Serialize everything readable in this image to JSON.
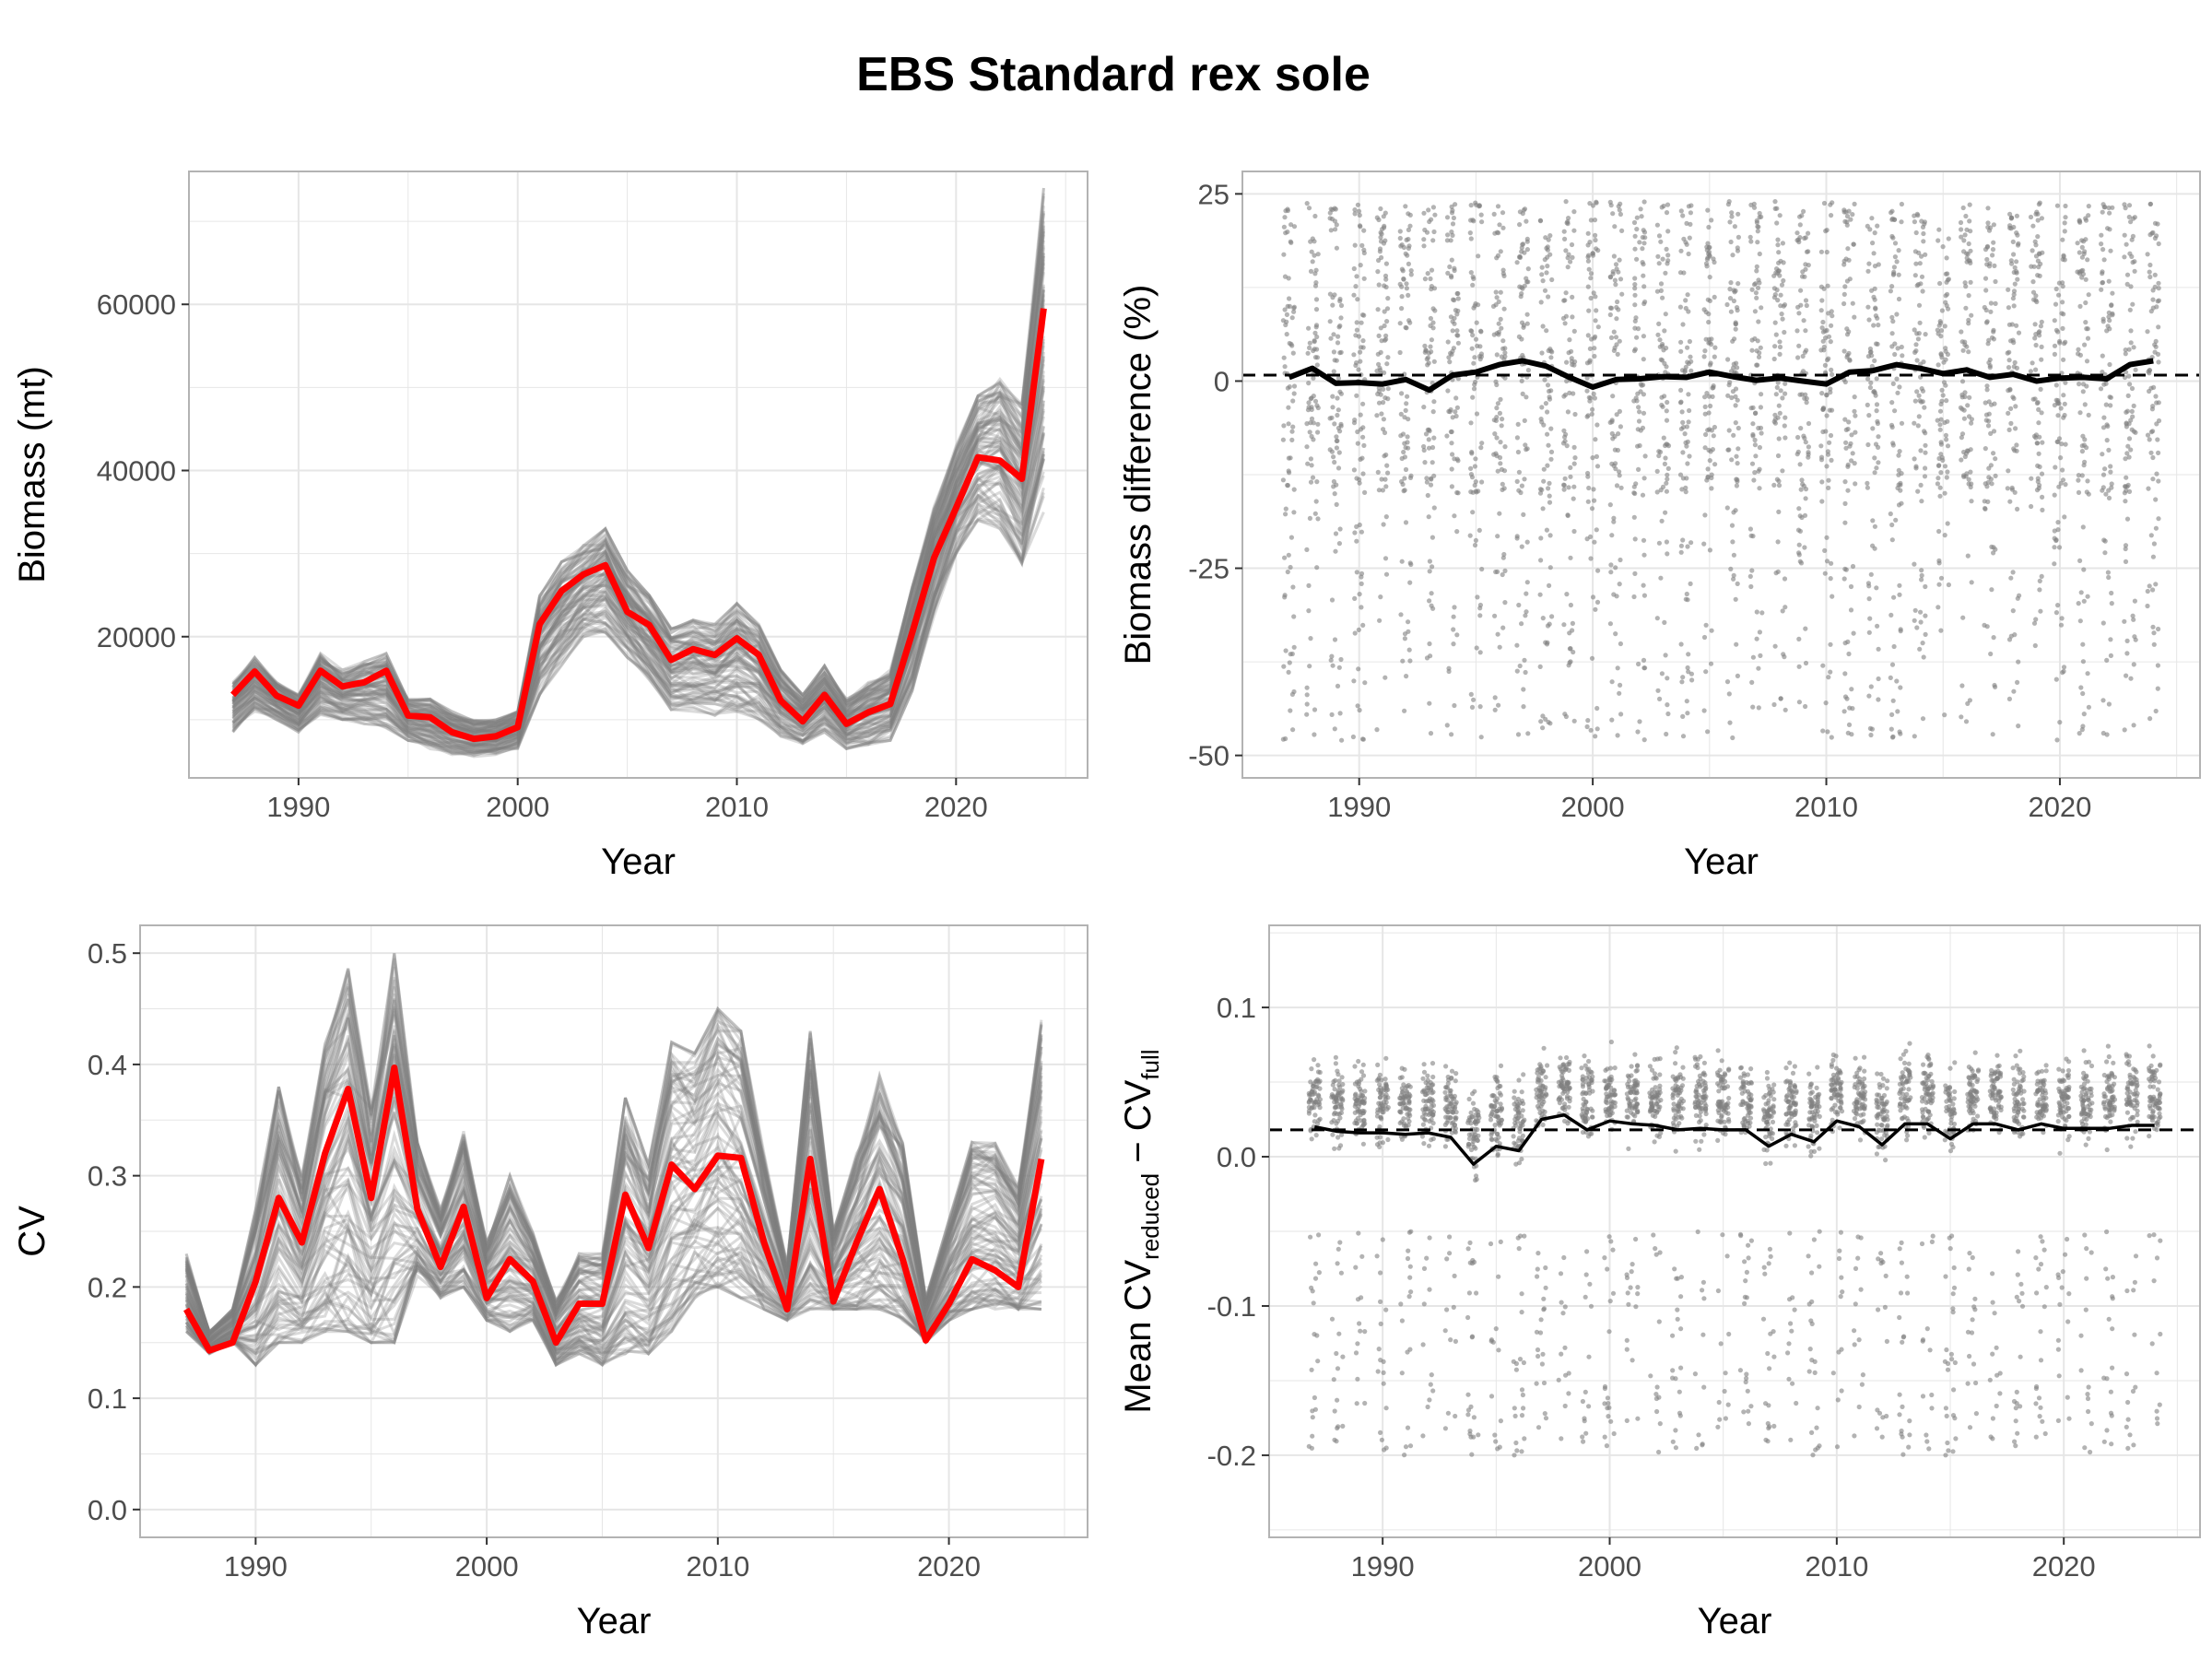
{
  "figure": {
    "title": "EBS Standard rex sole"
  },
  "colors": {
    "highlight": "#ff0000",
    "ensemble": "#7f7f7f",
    "mean_line": "#000000",
    "points": "#808080",
    "grid": "#e6e6e6",
    "panel_border": "#b3b3b3"
  },
  "chart_data": [
    {
      "id": "biomass",
      "type": "line",
      "xlabel": "Year",
      "ylabel": "Biomass (mt)",
      "xlim": [
        1985,
        2026
      ],
      "ylim": [
        3000,
        76000
      ],
      "x_ticks": [
        1990,
        2000,
        2010,
        2020
      ],
      "y_ticks": [
        20000,
        40000,
        60000
      ],
      "grid": true,
      "x": [
        1987,
        1988,
        1989,
        1990,
        1991,
        1992,
        1993,
        1994,
        1995,
        1996,
        1997,
        1998,
        1999,
        2000,
        2001,
        2002,
        2003,
        2004,
        2005,
        2006,
        2007,
        2008,
        2009,
        2010,
        2011,
        2012,
        2013,
        2014,
        2015,
        2016,
        2017,
        2018,
        2019,
        2020,
        2021,
        2022,
        2023,
        2024
      ],
      "series": [
        {
          "role": "full",
          "color": "#ff0000",
          "values": [
            13000,
            15800,
            12900,
            11700,
            15900,
            14000,
            14500,
            15900,
            10500,
            10300,
            8500,
            7700,
            8000,
            9100,
            21500,
            25500,
            27500,
            28600,
            23000,
            21400,
            17200,
            18500,
            17800,
            19800,
            17800,
            12300,
            9800,
            13000,
            9500,
            10900,
            11900,
            20500,
            29500,
            35500,
            41600,
            41200,
            39000,
            59500
          ]
        },
        {
          "role": "ensemble_upper",
          "color": "#7f7f7f",
          "values": [
            14500,
            17500,
            14500,
            13000,
            18000,
            16000,
            17000,
            18000,
            12500,
            12500,
            11000,
            10000,
            10000,
            11000,
            25000,
            29000,
            31000,
            33000,
            28000,
            25000,
            21000,
            22000,
            21500,
            24000,
            21500,
            16000,
            13000,
            16500,
            12500,
            14500,
            16000,
            26000,
            36000,
            43000,
            49000,
            51000,
            48000,
            74000
          ]
        },
        {
          "role": "ensemble_lower",
          "color": "#7f7f7f",
          "values": [
            8500,
            11000,
            10000,
            8500,
            10500,
            10000,
            9500,
            9000,
            7500,
            6500,
            5800,
            5500,
            5800,
            6500,
            13000,
            16500,
            20000,
            20500,
            17500,
            14500,
            11000,
            11000,
            10500,
            11000,
            10000,
            8000,
            7000,
            8500,
            6500,
            7000,
            7500,
            13500,
            22500,
            30000,
            34000,
            33000,
            28000,
            35000
          ]
        }
      ]
    },
    {
      "id": "biomass_diff",
      "type": "scatter",
      "xlabel": "Year",
      "ylabel": "Biomass difference (%)",
      "xlim": [
        1985,
        2026
      ],
      "ylim": [
        -53,
        28
      ],
      "x_ticks": [
        1990,
        2000,
        2010,
        2020
      ],
      "y_ticks": [
        -50,
        -25,
        0,
        25
      ],
      "grid": true,
      "reference_line": {
        "y": 0.8,
        "style": "dashed"
      },
      "mean_line": {
        "x": [
          1987,
          1988,
          1989,
          1990,
          1991,
          1992,
          1993,
          1994,
          1995,
          1996,
          1997,
          1998,
          1999,
          2000,
          2001,
          2002,
          2003,
          2004,
          2005,
          2006,
          2007,
          2008,
          2009,
          2010,
          2011,
          2012,
          2013,
          2014,
          2015,
          2016,
          2017,
          2018,
          2019,
          2020,
          2021,
          2022,
          2023,
          2024
        ],
        "y": [
          0.5,
          1.7,
          -0.3,
          -0.2,
          -0.4,
          0.2,
          -1.2,
          0.8,
          1.2,
          2.2,
          2.7,
          2.0,
          0.5,
          -0.8,
          0.2,
          0.3,
          0.6,
          0.5,
          1.2,
          0.6,
          0.1,
          0.4,
          0.0,
          -0.4,
          1.2,
          1.4,
          2.2,
          1.7,
          1.0,
          1.5,
          0.5,
          0.9,
          0.0,
          0.4,
          0.5,
          0.3,
          2.2,
          2.7
        ]
      },
      "point_spread": {
        "min": -48,
        "max": 24,
        "per_year": 80
      }
    },
    {
      "id": "cv",
      "type": "line",
      "xlabel": "Year",
      "ylabel": "CV",
      "xlim": [
        1985,
        2026
      ],
      "ylim": [
        -0.025,
        0.525
      ],
      "x_ticks": [
        1990,
        2000,
        2010,
        2020
      ],
      "y_ticks": [
        0.0,
        0.1,
        0.2,
        0.3,
        0.4,
        0.5
      ],
      "grid": true,
      "x": [
        1987,
        1988,
        1989,
        1990,
        1991,
        1992,
        1993,
        1994,
        1995,
        1996,
        1997,
        1998,
        1999,
        2000,
        2001,
        2002,
        2003,
        2004,
        2005,
        2006,
        2007,
        2008,
        2009,
        2010,
        2011,
        2012,
        2013,
        2014,
        2015,
        2016,
        2017,
        2018,
        2019,
        2020,
        2021,
        2022,
        2023,
        2024
      ],
      "series": [
        {
          "role": "full",
          "color": "#ff0000",
          "values": [
            0.18,
            0.143,
            0.15,
            0.205,
            0.28,
            0.24,
            0.32,
            0.378,
            0.28,
            0.397,
            0.27,
            0.218,
            0.272,
            0.19,
            0.225,
            0.205,
            0.15,
            0.185,
            0.185,
            0.283,
            0.235,
            0.31,
            0.288,
            0.318,
            0.316,
            0.24,
            0.18,
            0.315,
            0.187,
            0.24,
            0.288,
            0.225,
            0.152,
            0.185,
            0.225,
            0.215,
            0.2,
            0.315
          ]
        },
        {
          "role": "ensemble_upper",
          "color": "#7f7f7f",
          "values": [
            0.23,
            0.16,
            0.18,
            0.27,
            0.38,
            0.3,
            0.42,
            0.49,
            0.36,
            0.5,
            0.33,
            0.27,
            0.34,
            0.24,
            0.3,
            0.25,
            0.19,
            0.23,
            0.23,
            0.37,
            0.31,
            0.42,
            0.41,
            0.45,
            0.43,
            0.32,
            0.22,
            0.43,
            0.25,
            0.32,
            0.39,
            0.33,
            0.19,
            0.26,
            0.33,
            0.33,
            0.29,
            0.44
          ]
        },
        {
          "role": "ensemble_lower",
          "color": "#7f7f7f",
          "values": [
            0.16,
            0.14,
            0.15,
            0.13,
            0.15,
            0.15,
            0.16,
            0.16,
            0.15,
            0.15,
            0.21,
            0.19,
            0.2,
            0.17,
            0.16,
            0.17,
            0.13,
            0.14,
            0.13,
            0.14,
            0.14,
            0.16,
            0.19,
            0.2,
            0.19,
            0.18,
            0.17,
            0.18,
            0.18,
            0.18,
            0.18,
            0.17,
            0.15,
            0.17,
            0.18,
            0.18,
            0.18,
            0.18
          ]
        }
      ]
    },
    {
      "id": "cv_diff",
      "type": "scatter",
      "xlabel": "Year",
      "ylabel": {
        "prefix": "Mean CV",
        "sub1": "reduced",
        "mid": " − CV",
        "sub2": "full"
      },
      "xlim": [
        1985,
        2026
      ],
      "ylim": [
        -0.255,
        0.155
      ],
      "x_ticks": [
        1990,
        2000,
        2010,
        2020
      ],
      "y_ticks": [
        -0.2,
        -0.1,
        0.0,
        0.1
      ],
      "y_tick_labels": [
        "-0.2",
        "-0.1",
        "0.0",
        "0.1"
      ],
      "grid": true,
      "reference_line": {
        "y": 0.018,
        "style": "dashed"
      },
      "mean_line": {
        "x": [
          1987,
          1988,
          1989,
          1990,
          1991,
          1992,
          1993,
          1994,
          1995,
          1996,
          1997,
          1998,
          1999,
          2000,
          2001,
          2002,
          2003,
          2004,
          2005,
          2006,
          2007,
          2008,
          2009,
          2010,
          2011,
          2012,
          2013,
          2014,
          2015,
          2016,
          2017,
          2018,
          2019,
          2020,
          2021,
          2022,
          2023,
          2024
        ],
        "y": [
          0.02,
          0.017,
          0.016,
          0.016,
          0.015,
          0.016,
          0.013,
          -0.005,
          0.007,
          0.004,
          0.025,
          0.028,
          0.018,
          0.024,
          0.022,
          0.021,
          0.018,
          0.019,
          0.018,
          0.018,
          0.007,
          0.015,
          0.01,
          0.024,
          0.02,
          0.008,
          0.022,
          0.022,
          0.012,
          0.022,
          0.022,
          0.018,
          0.022,
          0.019,
          0.019,
          0.019,
          0.021,
          0.021
        ]
      },
      "point_spread": {
        "per_year": 80
      }
    }
  ]
}
